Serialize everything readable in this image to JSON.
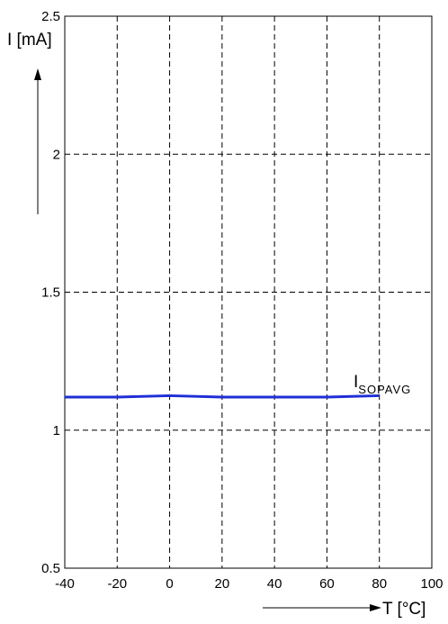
{
  "chart_data": {
    "type": "line",
    "title": "",
    "xlabel": "T [°C]",
    "ylabel": "I [mA]",
    "xlim": [
      -40,
      100
    ],
    "ylim": [
      0.5,
      2.5
    ],
    "x_ticks": [
      -40,
      -20,
      0,
      20,
      40,
      60,
      80,
      100
    ],
    "y_ticks": [
      0.5,
      1,
      1.5,
      2,
      2.5
    ],
    "x_tick_labels": [
      "-40",
      "-20",
      "0",
      "20",
      "40",
      "60",
      "80",
      "100"
    ],
    "y_tick_labels": [
      "0.5",
      "1",
      "1.5",
      "2",
      "2.5"
    ],
    "grid": true,
    "series": [
      {
        "name": "I",
        "name_subscript": "SOPAVG",
        "color": "#1f2fd6",
        "x": [
          -40,
          -20,
          0,
          20,
          40,
          60,
          80
        ],
        "y": [
          1.12,
          1.12,
          1.125,
          1.12,
          1.12,
          1.12,
          1.125
        ]
      }
    ]
  }
}
